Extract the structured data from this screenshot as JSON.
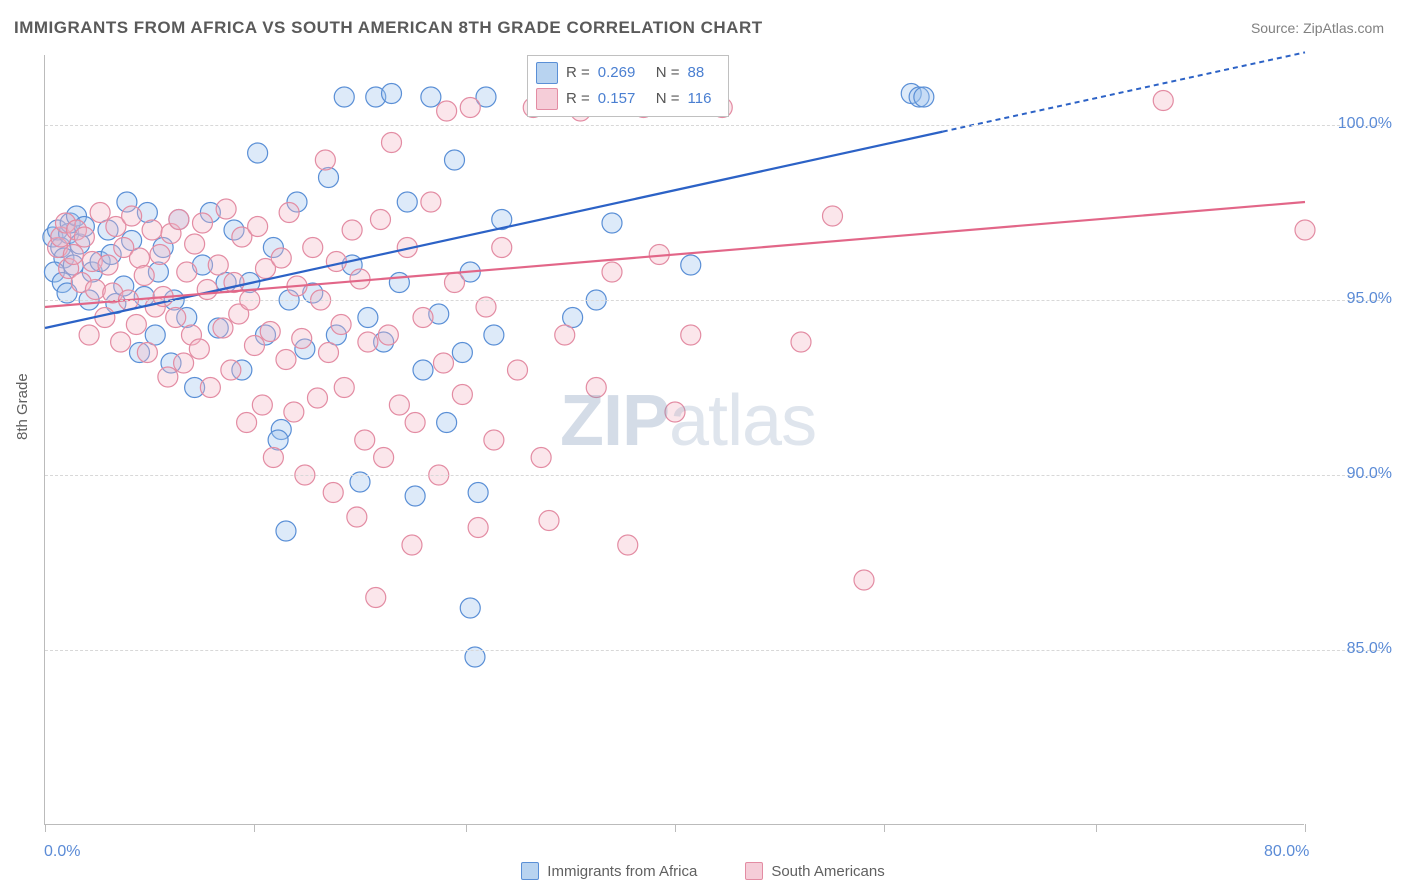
{
  "title": "IMMIGRANTS FROM AFRICA VS SOUTH AMERICAN 8TH GRADE CORRELATION CHART",
  "source": "Source: ZipAtlas.com",
  "watermark_bold": "ZIP",
  "watermark_rest": "atlas",
  "y_axis_label": "8th Grade",
  "chart": {
    "type": "scatter-with-regression",
    "xlim": [
      0,
      80
    ],
    "ylim": [
      80,
      102
    ],
    "y_ticks": [
      85,
      90,
      95,
      100
    ],
    "y_tick_labels": [
      "85.0%",
      "90.0%",
      "95.0%",
      "100.0%"
    ],
    "x_ticks": [
      0,
      13.3,
      26.7,
      40,
      53.3,
      66.7,
      80
    ],
    "x_tick_labels": {
      "0": "0.0%",
      "80": "80.0%"
    },
    "background_color": "#ffffff",
    "grid_color": "#d8d8d8",
    "axis_color": "#bbbbbb",
    "tick_label_color": "#5b8bd6",
    "marker_radius": 10,
    "series": [
      {
        "name": "Immigrants from Africa",
        "fill": "#9ec3ed",
        "stroke": "#5a8fd6",
        "line_color": "#2c62c6",
        "R": "0.269",
        "N": "88",
        "regression": {
          "x0": 0,
          "y0": 94.2,
          "x1": 64,
          "y1": 100.5,
          "dash_after_x": 57
        },
        "points": [
          [
            0.5,
            96.8
          ],
          [
            0.8,
            97.0
          ],
          [
            1.0,
            96.5
          ],
          [
            1.2,
            96.2
          ],
          [
            1.5,
            96.9
          ],
          [
            1.6,
            97.2
          ],
          [
            1.8,
            96.0
          ],
          [
            2.0,
            97.4
          ],
          [
            2.2,
            96.6
          ],
          [
            2.5,
            97.1
          ],
          [
            0.6,
            95.8
          ],
          [
            1.1,
            95.5
          ],
          [
            1.4,
            95.2
          ],
          [
            2.8,
            95.0
          ],
          [
            3.0,
            95.8
          ],
          [
            3.5,
            96.1
          ],
          [
            4.0,
            97.0
          ],
          [
            4.2,
            96.3
          ],
          [
            4.5,
            94.9
          ],
          [
            5.0,
            95.4
          ],
          [
            5.2,
            97.8
          ],
          [
            5.5,
            96.7
          ],
          [
            6.0,
            93.5
          ],
          [
            6.3,
            95.1
          ],
          [
            6.5,
            97.5
          ],
          [
            7.0,
            94.0
          ],
          [
            7.2,
            95.8
          ],
          [
            7.5,
            96.5
          ],
          [
            8.0,
            93.2
          ],
          [
            8.2,
            95.0
          ],
          [
            8.5,
            97.3
          ],
          [
            9.0,
            94.5
          ],
          [
            9.5,
            92.5
          ],
          [
            10.0,
            96.0
          ],
          [
            10.5,
            97.5
          ],
          [
            11.0,
            94.2
          ],
          [
            11.5,
            95.5
          ],
          [
            12.0,
            97.0
          ],
          [
            12.5,
            93.0
          ],
          [
            13.0,
            95.5
          ],
          [
            13.5,
            99.2
          ],
          [
            14.0,
            94.0
          ],
          [
            14.5,
            96.5
          ],
          [
            15.0,
            91.3
          ],
          [
            15.5,
            95.0
          ],
          [
            16.0,
            97.8
          ],
          [
            16.5,
            93.6
          ],
          [
            17.0,
            95.2
          ],
          [
            18.0,
            98.5
          ],
          [
            18.5,
            94.0
          ],
          [
            19.0,
            100.8
          ],
          [
            19.5,
            96.0
          ],
          [
            20.0,
            89.8
          ],
          [
            20.5,
            94.5
          ],
          [
            21.0,
            100.8
          ],
          [
            21.5,
            93.8
          ],
          [
            22.0,
            100.9
          ],
          [
            22.5,
            95.5
          ],
          [
            23.0,
            97.8
          ],
          [
            24.0,
            93.0
          ],
          [
            24.5,
            100.8
          ],
          [
            25.0,
            94.6
          ],
          [
            25.5,
            91.5
          ],
          [
            26.0,
            99.0
          ],
          [
            26.5,
            93.5
          ],
          [
            27.0,
            95.8
          ],
          [
            27.5,
            89.5
          ],
          [
            28.0,
            100.8
          ],
          [
            28.5,
            94.0
          ],
          [
            29.0,
            97.3
          ],
          [
            14.8,
            91.0
          ],
          [
            15.3,
            88.4
          ],
          [
            23.5,
            89.4
          ],
          [
            27.0,
            86.2
          ],
          [
            27.3,
            84.8
          ],
          [
            32.0,
            100.8
          ],
          [
            32.5,
            100.8
          ],
          [
            33.0,
            100.8
          ],
          [
            33.5,
            94.5
          ],
          [
            34.0,
            100.8
          ],
          [
            35.0,
            95.0
          ],
          [
            36.0,
            97.2
          ],
          [
            38.0,
            100.9
          ],
          [
            40.0,
            100.8
          ],
          [
            41.0,
            96.0
          ],
          [
            55.0,
            100.9
          ],
          [
            55.5,
            100.8
          ],
          [
            55.8,
            100.8
          ]
        ]
      },
      {
        "name": "South Americans",
        "fill": "#f3b8c6",
        "stroke": "#e38ca3",
        "line_color": "#e26688",
        "R": "0.157",
        "N": "116",
        "regression": {
          "x0": 0,
          "y0": 94.8,
          "x1": 80,
          "y1": 97.8,
          "dash_after_x": null
        },
        "points": [
          [
            0.8,
            96.5
          ],
          [
            1.0,
            96.8
          ],
          [
            1.3,
            97.2
          ],
          [
            1.5,
            95.9
          ],
          [
            1.8,
            96.3
          ],
          [
            2.0,
            97.0
          ],
          [
            2.3,
            95.5
          ],
          [
            2.5,
            96.8
          ],
          [
            2.8,
            94.0
          ],
          [
            3.0,
            96.1
          ],
          [
            3.2,
            95.3
          ],
          [
            3.5,
            97.5
          ],
          [
            3.8,
            94.5
          ],
          [
            4.0,
            96.0
          ],
          [
            4.3,
            95.2
          ],
          [
            4.5,
            97.1
          ],
          [
            4.8,
            93.8
          ],
          [
            5.0,
            96.5
          ],
          [
            5.3,
            95.0
          ],
          [
            5.5,
            97.4
          ],
          [
            5.8,
            94.3
          ],
          [
            6.0,
            96.2
          ],
          [
            6.3,
            95.7
          ],
          [
            6.5,
            93.5
          ],
          [
            6.8,
            97.0
          ],
          [
            7.0,
            94.8
          ],
          [
            7.3,
            96.3
          ],
          [
            7.5,
            95.1
          ],
          [
            7.8,
            92.8
          ],
          [
            8.0,
            96.9
          ],
          [
            8.3,
            94.5
          ],
          [
            8.5,
            97.3
          ],
          [
            8.8,
            93.2
          ],
          [
            9.0,
            95.8
          ],
          [
            9.3,
            94.0
          ],
          [
            9.5,
            96.6
          ],
          [
            9.8,
            93.6
          ],
          [
            10.0,
            97.2
          ],
          [
            10.3,
            95.3
          ],
          [
            10.5,
            92.5
          ],
          [
            11.0,
            96.0
          ],
          [
            11.3,
            94.2
          ],
          [
            11.5,
            97.6
          ],
          [
            11.8,
            93.0
          ],
          [
            12.0,
            95.5
          ],
          [
            12.3,
            94.6
          ],
          [
            12.5,
            96.8
          ],
          [
            12.8,
            91.5
          ],
          [
            13.0,
            95.0
          ],
          [
            13.3,
            93.7
          ],
          [
            13.5,
            97.1
          ],
          [
            13.8,
            92.0
          ],
          [
            14.0,
            95.9
          ],
          [
            14.3,
            94.1
          ],
          [
            14.5,
            90.5
          ],
          [
            15.0,
            96.2
          ],
          [
            15.3,
            93.3
          ],
          [
            15.5,
            97.5
          ],
          [
            15.8,
            91.8
          ],
          [
            16.0,
            95.4
          ],
          [
            16.3,
            93.9
          ],
          [
            16.5,
            90.0
          ],
          [
            17.0,
            96.5
          ],
          [
            17.3,
            92.2
          ],
          [
            17.5,
            95.0
          ],
          [
            17.8,
            99.0
          ],
          [
            18.0,
            93.5
          ],
          [
            18.3,
            89.5
          ],
          [
            18.5,
            96.1
          ],
          [
            18.8,
            94.3
          ],
          [
            19.0,
            92.5
          ],
          [
            19.5,
            97.0
          ],
          [
            19.8,
            88.8
          ],
          [
            20.0,
            95.6
          ],
          [
            20.3,
            91.0
          ],
          [
            20.5,
            93.8
          ],
          [
            21.0,
            86.5
          ],
          [
            21.3,
            97.3
          ],
          [
            21.5,
            90.5
          ],
          [
            21.8,
            94.0
          ],
          [
            22.0,
            99.5
          ],
          [
            22.5,
            92.0
          ],
          [
            23.0,
            96.5
          ],
          [
            23.3,
            88.0
          ],
          [
            23.5,
            91.5
          ],
          [
            24.0,
            94.5
          ],
          [
            24.5,
            97.8
          ],
          [
            25.0,
            90.0
          ],
          [
            25.3,
            93.2
          ],
          [
            25.5,
            100.4
          ],
          [
            26.0,
            95.5
          ],
          [
            26.5,
            92.3
          ],
          [
            27.0,
            100.5
          ],
          [
            27.5,
            88.5
          ],
          [
            28.0,
            94.8
          ],
          [
            28.5,
            91.0
          ],
          [
            29.0,
            96.5
          ],
          [
            30.0,
            93.0
          ],
          [
            31.0,
            100.5
          ],
          [
            31.5,
            90.5
          ],
          [
            32.0,
            88.7
          ],
          [
            33.0,
            94.0
          ],
          [
            34.0,
            100.4
          ],
          [
            35.0,
            92.5
          ],
          [
            36.0,
            95.8
          ],
          [
            37.0,
            88.0
          ],
          [
            38.0,
            100.5
          ],
          [
            39.0,
            96.3
          ],
          [
            40.0,
            91.8
          ],
          [
            41.0,
            94.0
          ],
          [
            43.0,
            100.5
          ],
          [
            48.0,
            93.8
          ],
          [
            50.0,
            97.4
          ],
          [
            52.0,
            87.0
          ],
          [
            71.0,
            100.7
          ],
          [
            80.0,
            97.0
          ]
        ]
      }
    ],
    "legend_box": {
      "rows": [
        {
          "swatch_fill": "#b8d3f0",
          "swatch_border": "#5a8fd6",
          "r_label": "R =",
          "r_val": "0.269",
          "n_label": "N =",
          "n_val": "88"
        },
        {
          "swatch_fill": "#f5cdd8",
          "swatch_border": "#e38ca3",
          "r_label": "R =",
          "r_val": "0.157",
          "n_label": "N =",
          "n_val": "116"
        }
      ]
    },
    "bottom_legend": [
      {
        "swatch_fill": "#b8d3f0",
        "swatch_border": "#5a8fd6",
        "label": "Immigrants from Africa"
      },
      {
        "swatch_fill": "#f5cdd8",
        "swatch_border": "#e38ca3",
        "label": "South Americans"
      }
    ]
  }
}
